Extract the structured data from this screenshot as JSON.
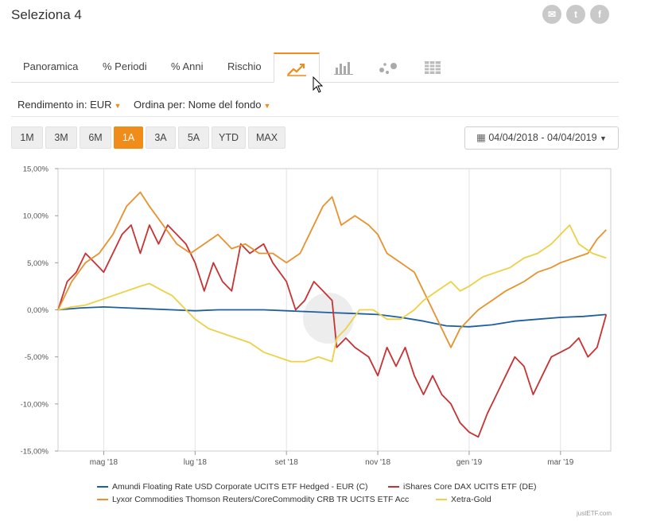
{
  "header": {
    "title": "Seleziona 4",
    "social": [
      {
        "icon": "email-icon",
        "glyph": "✉"
      },
      {
        "icon": "twitter-icon",
        "glyph": "t"
      },
      {
        "icon": "facebook-icon",
        "glyph": "f"
      }
    ]
  },
  "tabs": {
    "panoramica": "Panoramica",
    "periodi": "% Periodi",
    "anni": "% Anni",
    "rischio": "Rischio",
    "icons": [
      "line-chart-icon",
      "bar-chart-icon",
      "scatter-chart-icon",
      "table-grid-icon"
    ],
    "active_color": "#f08c1a"
  },
  "filters": {
    "rendimento_label": "Rendimento in:",
    "rendimento_value": "EUR",
    "ordina_label": "Ordina per:",
    "ordina_value": "Nome del fondo"
  },
  "periods": [
    "1M",
    "3M",
    "6M",
    "1A",
    "3A",
    "5A",
    "YTD",
    "MAX"
  ],
  "active_period": "1A",
  "date_range": "04/04/2018 - 04/04/2019",
  "credit": "justETF.com",
  "chart_data": {
    "type": "line",
    "x_ticks": [
      "mag '18",
      "lug '18",
      "set '18",
      "nov '18",
      "gen '19",
      "mar '19"
    ],
    "x_tick_months": [
      1,
      3,
      5,
      7,
      9,
      11
    ],
    "xlim_months": [
      0.0,
      12.1
    ],
    "ylim": [
      -15,
      15
    ],
    "y_ticks": [
      "15,00%",
      "10,00%",
      "5,00%",
      "0,00%",
      "-5,00%",
      "-10,00%",
      "-15,00%"
    ],
    "y_tick_values": [
      15,
      10,
      5,
      0,
      -5,
      -10,
      -15
    ],
    "grid": "vertical",
    "legend_position": "bottom",
    "series": [
      {
        "name": "Amundi Floating Rate USD Corporate UCITS ETF Hedged - EUR (C)",
        "color": "#1f5fa0",
        "points": [
          [
            0,
            0
          ],
          [
            0.5,
            0.2
          ],
          [
            1,
            0.3
          ],
          [
            1.5,
            0.2
          ],
          [
            2,
            0.1
          ],
          [
            2.5,
            0
          ],
          [
            3,
            -0.1
          ],
          [
            3.5,
            0
          ],
          [
            4,
            0
          ],
          [
            4.5,
            0
          ],
          [
            5,
            -0.1
          ],
          [
            5.5,
            -0.2
          ],
          [
            6,
            -0.3
          ],
          [
            6.5,
            -0.4
          ],
          [
            7,
            -0.5
          ],
          [
            7.5,
            -0.8
          ],
          [
            8,
            -1.2
          ],
          [
            8.5,
            -1.7
          ],
          [
            9,
            -1.8
          ],
          [
            9.5,
            -1.6
          ],
          [
            10,
            -1.2
          ],
          [
            10.5,
            -1.0
          ],
          [
            11,
            -0.8
          ],
          [
            11.5,
            -0.7
          ],
          [
            12,
            -0.5
          ]
        ]
      },
      {
        "name": "iShares Core DAX UCITS ETF (DE)",
        "color": "#c83232",
        "points": [
          [
            0,
            0
          ],
          [
            0.2,
            3
          ],
          [
            0.4,
            4
          ],
          [
            0.6,
            6
          ],
          [
            0.8,
            5
          ],
          [
            1,
            4
          ],
          [
            1.2,
            6
          ],
          [
            1.4,
            8
          ],
          [
            1.6,
            9
          ],
          [
            1.8,
            6
          ],
          [
            2,
            9
          ],
          [
            2.2,
            7
          ],
          [
            2.4,
            9
          ],
          [
            2.6,
            8
          ],
          [
            2.8,
            7
          ],
          [
            3,
            5
          ],
          [
            3.2,
            2
          ],
          [
            3.4,
            5
          ],
          [
            3.6,
            3
          ],
          [
            3.8,
            2
          ],
          [
            4,
            7
          ],
          [
            4.2,
            6
          ],
          [
            4.5,
            7
          ],
          [
            4.7,
            5
          ],
          [
            5,
            3
          ],
          [
            5.2,
            0
          ],
          [
            5.4,
            1
          ],
          [
            5.6,
            3
          ],
          [
            5.8,
            2
          ],
          [
            6,
            1
          ],
          [
            6.1,
            -4
          ],
          [
            6.3,
            -3
          ],
          [
            6.5,
            -4
          ],
          [
            6.8,
            -5
          ],
          [
            7,
            -7
          ],
          [
            7.2,
            -4
          ],
          [
            7.4,
            -6
          ],
          [
            7.6,
            -4
          ],
          [
            7.8,
            -7
          ],
          [
            8,
            -9
          ],
          [
            8.2,
            -7
          ],
          [
            8.4,
            -9
          ],
          [
            8.6,
            -10
          ],
          [
            8.8,
            -12
          ],
          [
            9,
            -13
          ],
          [
            9.2,
            -13.5
          ],
          [
            9.4,
            -11
          ],
          [
            9.6,
            -9
          ],
          [
            9.8,
            -7
          ],
          [
            10,
            -5
          ],
          [
            10.2,
            -6
          ],
          [
            10.4,
            -9
          ],
          [
            10.6,
            -7
          ],
          [
            10.8,
            -5
          ],
          [
            11,
            -4.5
          ],
          [
            11.2,
            -4
          ],
          [
            11.4,
            -3
          ],
          [
            11.6,
            -5
          ],
          [
            11.8,
            -4
          ],
          [
            12,
            -0.5
          ]
        ]
      },
      {
        "name": "Lyxor Commodities Thomson Reuters/CoreCommodity CRB TR UCITS ETF Acc",
        "color": "#e8922e",
        "points": [
          [
            0,
            0
          ],
          [
            0.3,
            3
          ],
          [
            0.6,
            5
          ],
          [
            0.9,
            6
          ],
          [
            1.2,
            8
          ],
          [
            1.5,
            11
          ],
          [
            1.8,
            12.5
          ],
          [
            2,
            11
          ],
          [
            2.3,
            9
          ],
          [
            2.6,
            7
          ],
          [
            2.9,
            6
          ],
          [
            3.2,
            7
          ],
          [
            3.5,
            8
          ],
          [
            3.8,
            6.5
          ],
          [
            4.1,
            7
          ],
          [
            4.4,
            6
          ],
          [
            4.7,
            6
          ],
          [
            5,
            5
          ],
          [
            5.3,
            6
          ],
          [
            5.5,
            8
          ],
          [
            5.8,
            11
          ],
          [
            6,
            12
          ],
          [
            6.2,
            9
          ],
          [
            6.5,
            10
          ],
          [
            6.8,
            9
          ],
          [
            7,
            8
          ],
          [
            7.2,
            6
          ],
          [
            7.5,
            5
          ],
          [
            7.8,
            4
          ],
          [
            8,
            2
          ],
          [
            8.2,
            0
          ],
          [
            8.4,
            -2
          ],
          [
            8.6,
            -4
          ],
          [
            8.8,
            -2
          ],
          [
            9,
            -1
          ],
          [
            9.2,
            0
          ],
          [
            9.5,
            1
          ],
          [
            9.8,
            2
          ],
          [
            10,
            2.5
          ],
          [
            10.2,
            3
          ],
          [
            10.5,
            4
          ],
          [
            10.8,
            4.5
          ],
          [
            11,
            5
          ],
          [
            11.3,
            5.5
          ],
          [
            11.6,
            6
          ],
          [
            11.8,
            7.5
          ],
          [
            12,
            8.5
          ]
        ]
      },
      {
        "name": "Xetra-Gold",
        "color": "#ebd146",
        "points": [
          [
            0,
            0
          ],
          [
            0.3,
            0.3
          ],
          [
            0.6,
            0.5
          ],
          [
            0.9,
            1
          ],
          [
            1.2,
            1.5
          ],
          [
            1.5,
            2
          ],
          [
            1.8,
            2.5
          ],
          [
            2,
            2.8
          ],
          [
            2.3,
            2
          ],
          [
            2.5,
            1.5
          ],
          [
            2.8,
            0
          ],
          [
            3,
            -1
          ],
          [
            3.3,
            -2
          ],
          [
            3.6,
            -2.5
          ],
          [
            3.9,
            -3
          ],
          [
            4.2,
            -3.5
          ],
          [
            4.5,
            -4.5
          ],
          [
            4.8,
            -5
          ],
          [
            5.1,
            -5.5
          ],
          [
            5.4,
            -5.5
          ],
          [
            5.7,
            -5
          ],
          [
            6,
            -5.5
          ],
          [
            6.1,
            -3
          ],
          [
            6.3,
            -2
          ],
          [
            6.6,
            0
          ],
          [
            6.9,
            0
          ],
          [
            7.2,
            -1
          ],
          [
            7.5,
            -1
          ],
          [
            7.8,
            0
          ],
          [
            8,
            1
          ],
          [
            8.3,
            2
          ],
          [
            8.6,
            3
          ],
          [
            8.8,
            2
          ],
          [
            9,
            2.5
          ],
          [
            9.3,
            3.5
          ],
          [
            9.6,
            4
          ],
          [
            9.9,
            4.5
          ],
          [
            10.2,
            5.5
          ],
          [
            10.5,
            6
          ],
          [
            10.8,
            7
          ],
          [
            11,
            8
          ],
          [
            11.2,
            9
          ],
          [
            11.4,
            7
          ],
          [
            11.7,
            6
          ],
          [
            12,
            5.5
          ]
        ]
      }
    ]
  }
}
